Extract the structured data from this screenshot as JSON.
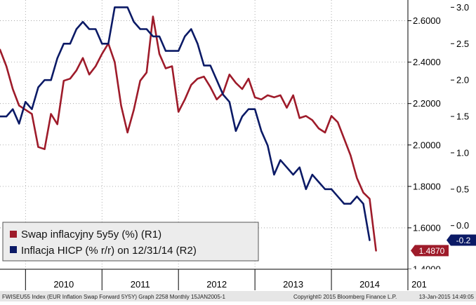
{
  "chart_data": {
    "type": "line",
    "x_start": "2009-09",
    "x_end": "2015-01",
    "year_labels": [
      "2010",
      "2011",
      "2012",
      "2013",
      "2014",
      "201"
    ],
    "right_axis_1": {
      "name": "R1",
      "ylim": [
        1.4,
        2.7
      ],
      "ticks": [
        "2.6000",
        "2.4000",
        "2.2000",
        "2.0000",
        "1.8000",
        "1.6000",
        "1.4000"
      ]
    },
    "right_axis_2": {
      "name": "R2",
      "ylim": [
        -0.6,
        3.1
      ],
      "ticks": [
        "3.0",
        "2.5",
        "2.0",
        "1.5",
        "1.0",
        "0.5",
        "0.0"
      ]
    },
    "series": [
      {
        "name": "Swap inflacyjny 5y5y (%) (R1)",
        "color": "#9e1b2a",
        "axis": "R1",
        "last_value_label": "1.4870",
        "points": [
          [
            "2009-09",
            2.46
          ],
          [
            "2009-10",
            2.38
          ],
          [
            "2009-11",
            2.27
          ],
          [
            "2009-12",
            2.19
          ],
          [
            "2010-01",
            2.17
          ],
          [
            "2010-02",
            2.15
          ],
          [
            "2010-03",
            1.99
          ],
          [
            "2010-04",
            1.98
          ],
          [
            "2010-05",
            2.15
          ],
          [
            "2010-06",
            2.1
          ],
          [
            "2010-07",
            2.31
          ],
          [
            "2010-08",
            2.32
          ],
          [
            "2010-09",
            2.36
          ],
          [
            "2010-10",
            2.42
          ],
          [
            "2010-11",
            2.34
          ],
          [
            "2010-12",
            2.38
          ],
          [
            "2011-01",
            2.44
          ],
          [
            "2011-02",
            2.49
          ],
          [
            "2011-03",
            2.4
          ],
          [
            "2011-04",
            2.19
          ],
          [
            "2011-05",
            2.06
          ],
          [
            "2011-06",
            2.17
          ],
          [
            "2011-07",
            2.31
          ],
          [
            "2011-08",
            2.35
          ],
          [
            "2011-09",
            2.62
          ],
          [
            "2011-10",
            2.44
          ],
          [
            "2011-11",
            2.37
          ],
          [
            "2011-12",
            2.38
          ],
          [
            "2012-01",
            2.16
          ],
          [
            "2012-02",
            2.22
          ],
          [
            "2012-03",
            2.29
          ],
          [
            "2012-04",
            2.32
          ],
          [
            "2012-05",
            2.33
          ],
          [
            "2012-06",
            2.28
          ],
          [
            "2012-07",
            2.22
          ],
          [
            "2012-08",
            2.25
          ],
          [
            "2012-09",
            2.34
          ],
          [
            "2012-10",
            2.3
          ],
          [
            "2012-11",
            2.27
          ],
          [
            "2012-12",
            2.32
          ],
          [
            "2013-01",
            2.23
          ],
          [
            "2013-02",
            2.22
          ],
          [
            "2013-03",
            2.24
          ],
          [
            "2013-04",
            2.23
          ],
          [
            "2013-05",
            2.24
          ],
          [
            "2013-06",
            2.18
          ],
          [
            "2013-07",
            2.24
          ],
          [
            "2013-08",
            2.13
          ],
          [
            "2013-09",
            2.14
          ],
          [
            "2013-10",
            2.12
          ],
          [
            "2013-11",
            2.08
          ],
          [
            "2013-12",
            2.06
          ],
          [
            "2014-01",
            2.14
          ],
          [
            "2014-02",
            2.11
          ],
          [
            "2014-03",
            2.03
          ],
          [
            "2014-04",
            1.95
          ],
          [
            "2014-05",
            1.84
          ],
          [
            "2014-06",
            1.77
          ],
          [
            "2014-07",
            1.74
          ],
          [
            "2014-08",
            1.49
          ]
        ]
      },
      {
        "name": "Inflacja HICP (% r/r) on 12/31/14 (R2)",
        "color": "#0b1a66",
        "axis": "R2",
        "last_value_label": "-0.2",
        "points": [
          [
            "2009-09",
            1.5
          ],
          [
            "2009-10",
            1.5
          ],
          [
            "2009-11",
            1.6
          ],
          [
            "2009-12",
            1.4
          ],
          [
            "2010-01",
            1.7
          ],
          [
            "2010-02",
            1.6
          ],
          [
            "2010-03",
            1.9
          ],
          [
            "2010-04",
            2.0
          ],
          [
            "2010-05",
            2.0
          ],
          [
            "2010-06",
            2.3
          ],
          [
            "2010-07",
            2.5
          ],
          [
            "2010-08",
            2.5
          ],
          [
            "2010-09",
            2.7
          ],
          [
            "2010-10",
            2.8
          ],
          [
            "2010-11",
            2.7
          ],
          [
            "2010-12",
            2.7
          ],
          [
            "2011-01",
            2.5
          ],
          [
            "2011-02",
            2.5
          ],
          [
            "2011-03",
            3.0
          ],
          [
            "2011-04",
            3.0
          ],
          [
            "2011-05",
            3.0
          ],
          [
            "2011-06",
            2.8
          ],
          [
            "2011-07",
            2.7
          ],
          [
            "2011-08",
            2.7
          ],
          [
            "2011-09",
            2.6
          ],
          [
            "2011-10",
            2.6
          ],
          [
            "2011-11",
            2.4
          ],
          [
            "2011-12",
            2.4
          ],
          [
            "2012-01",
            2.4
          ],
          [
            "2012-02",
            2.6
          ],
          [
            "2012-03",
            2.7
          ],
          [
            "2012-04",
            2.5
          ],
          [
            "2012-05",
            2.2
          ],
          [
            "2012-06",
            2.2
          ],
          [
            "2012-07",
            2.0
          ],
          [
            "2012-08",
            1.8
          ],
          [
            "2012-09",
            1.7
          ],
          [
            "2012-10",
            1.3
          ],
          [
            "2012-11",
            1.5
          ],
          [
            "2012-12",
            1.6
          ],
          [
            "2013-01",
            1.6
          ],
          [
            "2013-02",
            1.3
          ],
          [
            "2013-03",
            1.1
          ],
          [
            "2013-04",
            0.7
          ],
          [
            "2013-05",
            0.9
          ],
          [
            "2013-06",
            0.8
          ],
          [
            "2013-07",
            0.7
          ],
          [
            "2013-08",
            0.8
          ],
          [
            "2013-09",
            0.5
          ],
          [
            "2013-10",
            0.7
          ],
          [
            "2013-11",
            0.6
          ],
          [
            "2013-12",
            0.5
          ],
          [
            "2014-01",
            0.5
          ],
          [
            "2014-02",
            0.4
          ],
          [
            "2014-03",
            0.3
          ],
          [
            "2014-04",
            0.3
          ],
          [
            "2014-05",
            0.4
          ],
          [
            "2014-06",
            0.3
          ],
          [
            "2014-07",
            -0.2
          ]
        ]
      }
    ]
  },
  "footer": {
    "left_text": "FWISEU55 Index (EUR Inflation Swap Forward 5Y5Y) Graph 2258  Monthly 15JAN2005-1",
    "middle_text": "Copyright© 2015 Bloomberg Finance L.P.",
    "right_text": "13-Jan-2015 14:49:05"
  }
}
